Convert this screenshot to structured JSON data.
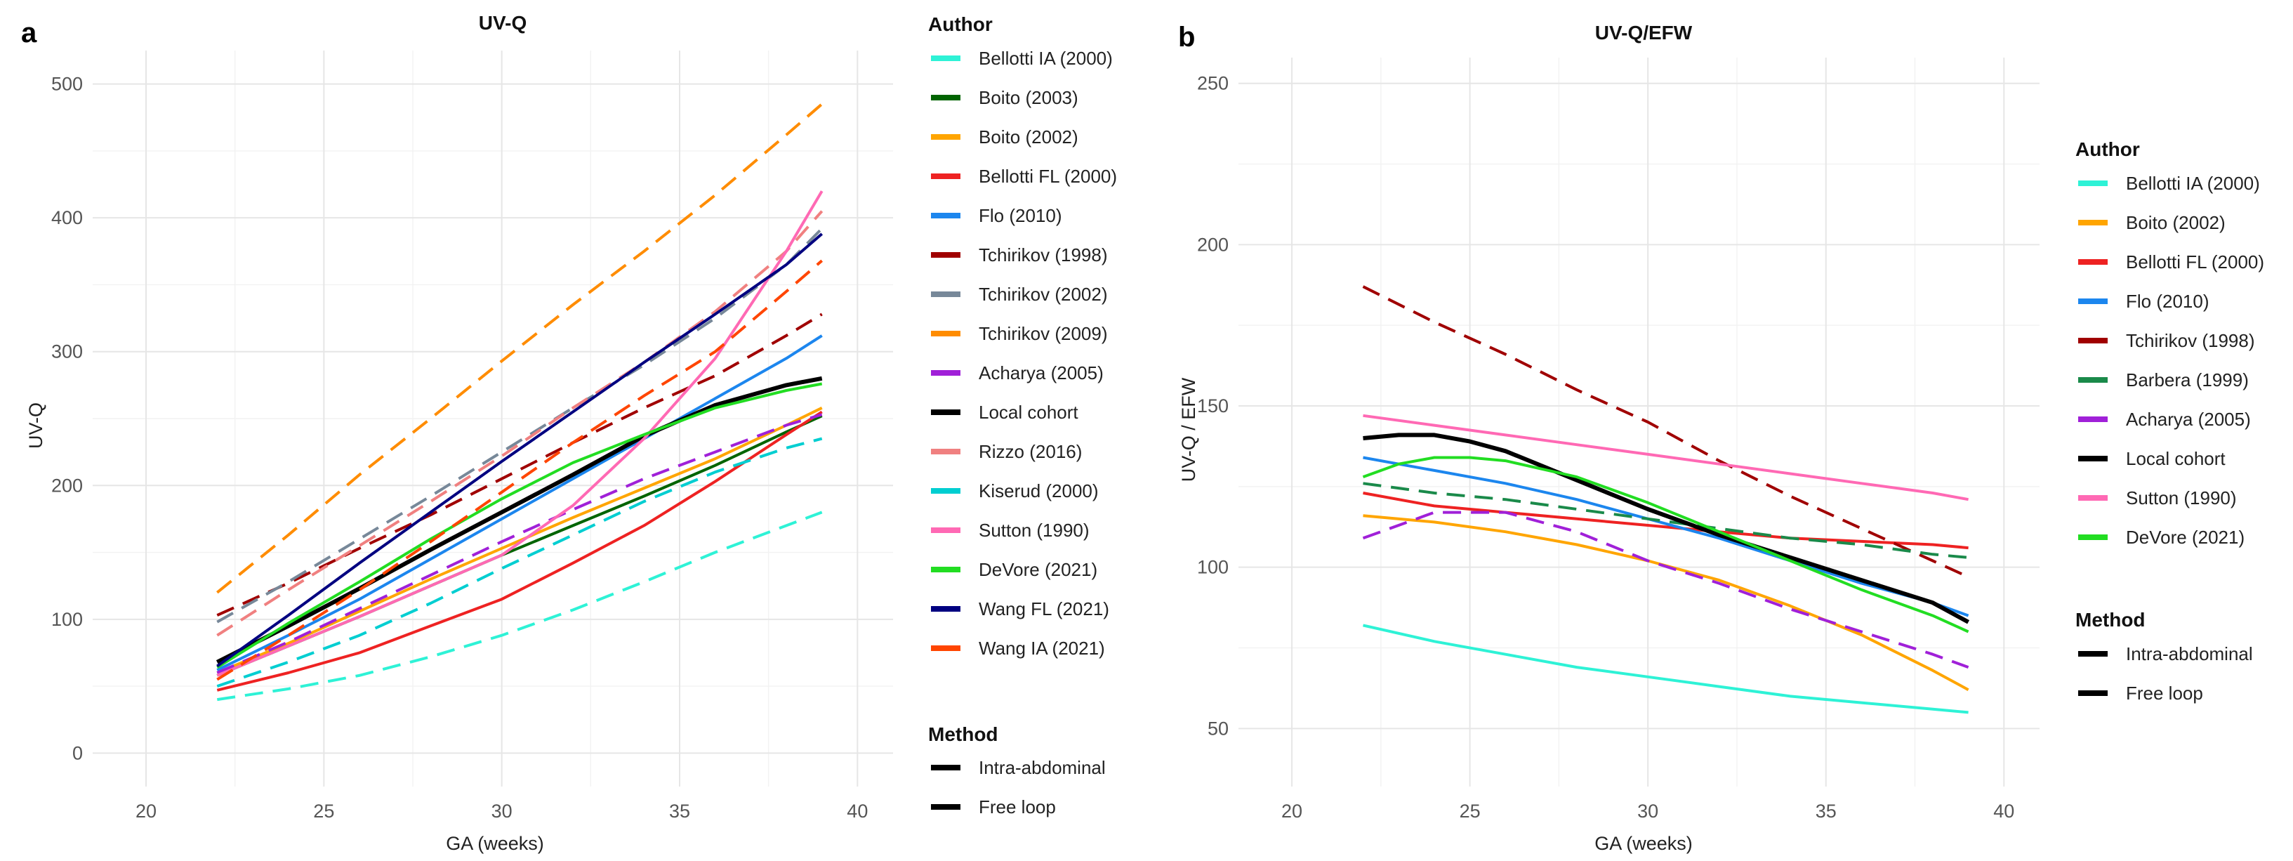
{
  "chart_data": [
    {
      "type": "line",
      "panel_letter": "a",
      "title": "UV-Q",
      "xlabel": "GA (weeks)",
      "ylabel": "UV-Q",
      "xlim": [
        18.5,
        41
      ],
      "ylim": [
        -25,
        525
      ],
      "xticks": [
        20,
        25,
        30,
        35,
        40
      ],
      "yticks": [
        0,
        100,
        200,
        300,
        400,
        500
      ],
      "grid": true,
      "legend": {
        "placement": "right",
        "author_title": "Author",
        "method_title": "Method",
        "authors": [
          {
            "name": "Bellotti IA (2000)",
            "color": "#2ef2d6"
          },
          {
            "name": "Boito (2003)",
            "color": "#006400"
          },
          {
            "name": "Boito (2002)",
            "color": "#ffa500"
          },
          {
            "name": "Bellotti FL (2000)",
            "color": "#ee2222"
          },
          {
            "name": "Flo (2010)",
            "color": "#1c86ee"
          },
          {
            "name": "Tchirikov (1998)",
            "color": "#a00000"
          },
          {
            "name": "Tchirikov (2002)",
            "color": "#778899"
          },
          {
            "name": "Tchirikov (2009)",
            "color": "#ff8c00"
          },
          {
            "name": "Acharya (2005)",
            "color": "#a020d8"
          },
          {
            "name": "Local cohort",
            "color": "#000000"
          },
          {
            "name": "Rizzo (2016)",
            "color": "#f08080"
          },
          {
            "name": "Kiserud (2000)",
            "color": "#00ced1"
          },
          {
            "name": "Sutton (1990)",
            "color": "#ff69b4"
          },
          {
            "name": "DeVore (2021)",
            "color": "#22dd22"
          },
          {
            "name": "Wang FL (2021)",
            "color": "#000080"
          },
          {
            "name": "Wang IA (2021)",
            "color": "#ff4500"
          }
        ],
        "methods": [
          {
            "name": "Intra-abdominal",
            "dash": "solid"
          },
          {
            "name": "Free loop",
            "dash": "dashed"
          }
        ]
      },
      "series": [
        {
          "name": "Bellotti IA (2000)",
          "color": "#2ef2d6",
          "method": "Free loop",
          "x": [
            22,
            24,
            26,
            28,
            30,
            32,
            34,
            36,
            38,
            39
          ],
          "y": [
            40,
            48,
            58,
            72,
            88,
            107,
            128,
            150,
            170,
            180
          ]
        },
        {
          "name": "Boito (2003)",
          "color": "#006400",
          "method": "Intra-abdominal",
          "x": [
            22,
            24,
            26,
            28,
            30,
            32,
            34,
            36,
            38,
            39
          ],
          "y": [
            58,
            80,
            102,
            125,
            148,
            170,
            192,
            215,
            240,
            252
          ]
        },
        {
          "name": "Boito (2002)",
          "color": "#ffa500",
          "method": "Intra-abdominal",
          "x": [
            22,
            24,
            26,
            28,
            30,
            32,
            34,
            36,
            38,
            39
          ],
          "y": [
            60,
            82,
            106,
            130,
            153,
            176,
            198,
            220,
            245,
            258
          ]
        },
        {
          "name": "Bellotti FL (2000)",
          "color": "#ee2222",
          "method": "Intra-abdominal",
          "x": [
            22,
            24,
            26,
            28,
            30,
            32,
            34,
            36,
            38,
            39
          ],
          "y": [
            47,
            60,
            75,
            95,
            115,
            142,
            170,
            203,
            238,
            255
          ]
        },
        {
          "name": "Flo (2010)",
          "color": "#1c86ee",
          "method": "Intra-abdominal",
          "x": [
            22,
            24,
            26,
            28,
            30,
            32,
            34,
            36,
            38,
            39
          ],
          "y": [
            62,
            88,
            115,
            145,
            175,
            205,
            235,
            265,
            295,
            312
          ]
        },
        {
          "name": "Tchirikov (1998)",
          "color": "#a00000",
          "method": "Free loop",
          "x": [
            22,
            24,
            26,
            28,
            30,
            32,
            34,
            36,
            38,
            39
          ],
          "y": [
            103,
            127,
            153,
            178,
            205,
            232,
            258,
            282,
            312,
            328
          ]
        },
        {
          "name": "Tchirikov (2002)",
          "color": "#778899",
          "method": "Free loop",
          "x": [
            22,
            24,
            26,
            28,
            30,
            32,
            34,
            36,
            38,
            39
          ],
          "y": [
            98,
            128,
            160,
            192,
            225,
            258,
            290,
            325,
            365,
            392
          ]
        },
        {
          "name": "Tchirikov (2009)",
          "color": "#ff8c00",
          "method": "Free loop",
          "x": [
            22,
            24,
            26,
            28,
            30,
            32,
            34,
            36,
            38,
            39
          ],
          "y": [
            120,
            163,
            208,
            250,
            293,
            335,
            375,
            417,
            462,
            485
          ]
        },
        {
          "name": "Acharya (2005)",
          "color": "#a020d8",
          "method": "Free loop",
          "x": [
            22,
            24,
            26,
            28,
            30,
            32,
            34,
            36,
            38,
            39
          ],
          "y": [
            60,
            83,
            108,
            133,
            158,
            182,
            205,
            225,
            245,
            253
          ]
        },
        {
          "name": "Local cohort",
          "color": "#000000",
          "method": "Intra-abdominal",
          "x": [
            22,
            24,
            26,
            28,
            30,
            32,
            34,
            36,
            38,
            39
          ],
          "y": [
            68,
            95,
            123,
            152,
            180,
            208,
            237,
            260,
            275,
            280
          ]
        },
        {
          "name": "Rizzo (2016)",
          "color": "#f08080",
          "method": "Free loop",
          "x": [
            22,
            24,
            26,
            28,
            30,
            32,
            34,
            36,
            38,
            39
          ],
          "y": [
            88,
            122,
            155,
            188,
            222,
            258,
            292,
            330,
            375,
            405
          ]
        },
        {
          "name": "Kiserud (2000)",
          "color": "#00ced1",
          "method": "Free loop",
          "x": [
            22,
            24,
            26,
            28,
            30,
            32,
            34,
            36,
            38,
            39
          ],
          "y": [
            50,
            68,
            88,
            112,
            138,
            163,
            188,
            210,
            228,
            235
          ]
        },
        {
          "name": "Sutton (1990)",
          "color": "#ff69b4",
          "method": "Intra-abdominal",
          "x": [
            22,
            24,
            26,
            28,
            30,
            32,
            34,
            36,
            38,
            39
          ],
          "y": [
            58,
            80,
            102,
            125,
            148,
            185,
            235,
            295,
            375,
            420
          ]
        },
        {
          "name": "DeVore (2021)",
          "color": "#22dd22",
          "method": "Intra-abdominal",
          "x": [
            22,
            24,
            26,
            28,
            30,
            32,
            34,
            36,
            38,
            39
          ],
          "y": [
            64,
            97,
            128,
            160,
            190,
            217,
            238,
            258,
            271,
            276
          ]
        },
        {
          "name": "Wang FL (2021)",
          "color": "#000080",
          "method": "Intra-abdominal",
          "x": [
            22,
            24,
            26,
            28,
            30,
            32,
            34,
            36,
            38,
            39
          ],
          "y": [
            65,
            103,
            142,
            180,
            218,
            255,
            292,
            328,
            365,
            388
          ]
        },
        {
          "name": "Wang IA (2021)",
          "color": "#ff4500",
          "method": "Free loop",
          "x": [
            22,
            24,
            26,
            28,
            30,
            32,
            34,
            36,
            38,
            39
          ],
          "y": [
            55,
            88,
            122,
            158,
            195,
            232,
            267,
            300,
            345,
            368
          ]
        }
      ]
    },
    {
      "type": "line",
      "panel_letter": "b",
      "title": "UV-Q/EFW",
      "xlabel": "GA (weeks)",
      "ylabel": "UV-Q / EFW",
      "xlim": [
        18.5,
        41
      ],
      "ylim": [
        32,
        258
      ],
      "xticks": [
        20,
        25,
        30,
        35,
        40
      ],
      "yticks": [
        50,
        100,
        150,
        200,
        250
      ],
      "grid": true,
      "legend": {
        "placement": "right",
        "author_title": "Author",
        "method_title": "Method",
        "authors": [
          {
            "name": "Bellotti IA (2000)",
            "color": "#2ef2d6"
          },
          {
            "name": "Boito (2002)",
            "color": "#ffa500"
          },
          {
            "name": "Bellotti FL (2000)",
            "color": "#ee2222"
          },
          {
            "name": "Flo (2010)",
            "color": "#1c86ee"
          },
          {
            "name": "Tchirikov (1998)",
            "color": "#a00000"
          },
          {
            "name": "Barbera (1999)",
            "color": "#1a8a4a"
          },
          {
            "name": "Acharya (2005)",
            "color": "#a020d8"
          },
          {
            "name": "Local cohort",
            "color": "#000000"
          },
          {
            "name": "Sutton (1990)",
            "color": "#ff69b4"
          },
          {
            "name": "DeVore (2021)",
            "color": "#22dd22"
          }
        ],
        "methods": [
          {
            "name": "Intra-abdominal",
            "dash": "solid"
          },
          {
            "name": "Free loop",
            "dash": "dashed"
          }
        ]
      },
      "series": [
        {
          "name": "Bellotti IA (2000)",
          "color": "#2ef2d6",
          "method": "Intra-abdominal",
          "x": [
            22,
            24,
            26,
            28,
            30,
            32,
            34,
            36,
            38,
            39
          ],
          "y": [
            82,
            77,
            73,
            69,
            66,
            63,
            60,
            58,
            56,
            55
          ]
        },
        {
          "name": "Boito (2002)",
          "color": "#ffa500",
          "method": "Intra-abdominal",
          "x": [
            22,
            24,
            26,
            28,
            30,
            32,
            34,
            36,
            38,
            39
          ],
          "y": [
            116,
            114,
            111,
            107,
            102,
            96,
            88,
            79,
            68,
            62
          ]
        },
        {
          "name": "Bellotti FL (2000)",
          "color": "#ee2222",
          "method": "Intra-abdominal",
          "x": [
            22,
            24,
            26,
            28,
            30,
            32,
            34,
            36,
            38,
            39
          ],
          "y": [
            123,
            119,
            117,
            115,
            113,
            111,
            109,
            108,
            107,
            106
          ]
        },
        {
          "name": "Flo (2010)",
          "color": "#1c86ee",
          "method": "Intra-abdominal",
          "x": [
            22,
            24,
            26,
            28,
            30,
            32,
            34,
            36,
            38,
            39
          ],
          "y": [
            134,
            130,
            126,
            121,
            115,
            109,
            102,
            95,
            89,
            85
          ]
        },
        {
          "name": "Tchirikov (1998)",
          "color": "#a00000",
          "method": "Free loop",
          "x": [
            22,
            24,
            26,
            28,
            30,
            32,
            34,
            36,
            38,
            39
          ],
          "y": [
            187,
            176,
            166,
            155,
            145,
            133,
            122,
            112,
            102,
            97
          ]
        },
        {
          "name": "Barbera (1999)",
          "color": "#1a8a4a",
          "method": "Free loop",
          "x": [
            22,
            24,
            26,
            28,
            30,
            32,
            34,
            36,
            38,
            39
          ],
          "y": [
            126,
            123,
            121,
            118,
            115,
            112,
            109,
            107,
            104,
            103
          ]
        },
        {
          "name": "Acharya (2005)",
          "color": "#a020d8",
          "method": "Free loop",
          "x": [
            22,
            24,
            26,
            28,
            30,
            32,
            34,
            36,
            38,
            39
          ],
          "y": [
            109,
            117,
            117,
            111,
            102,
            95,
            87,
            80,
            73,
            69
          ]
        },
        {
          "name": "Local cohort",
          "color": "#000000",
          "method": "Intra-abdominal",
          "x": [
            22,
            23,
            24,
            25,
            26,
            28,
            30,
            32,
            34,
            36,
            38,
            39
          ],
          "y": [
            140,
            141,
            141,
            139,
            136,
            127,
            118,
            110,
            103,
            96,
            89,
            83
          ]
        },
        {
          "name": "Sutton (1990)",
          "color": "#ff69b4",
          "method": "Intra-abdominal",
          "x": [
            22,
            24,
            26,
            28,
            30,
            32,
            34,
            36,
            38,
            39
          ],
          "y": [
            147,
            144,
            141,
            138,
            135,
            132,
            129,
            126,
            123,
            121
          ]
        },
        {
          "name": "DeVore (2021)",
          "color": "#22dd22",
          "method": "Intra-abdominal",
          "x": [
            22,
            23,
            24,
            25,
            26,
            28,
            30,
            32,
            34,
            36,
            38,
            39
          ],
          "y": [
            128,
            132,
            134,
            134,
            133,
            128,
            120,
            111,
            102,
            93,
            85,
            80
          ]
        }
      ]
    }
  ]
}
